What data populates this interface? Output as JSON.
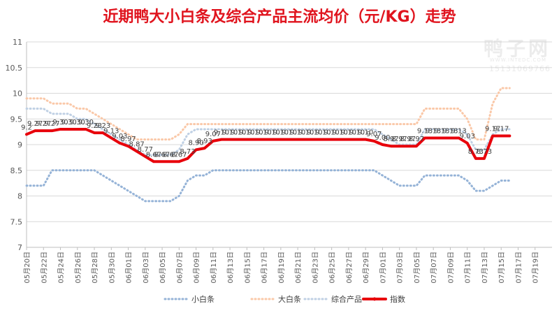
{
  "title": "近期鸭大小白条及综合产品主流均价（元/KG）走势",
  "watermark": {
    "brand": "鸭子网",
    "url": "WWW.INTEDC.COM",
    "phone": "15131069766"
  },
  "chart_data": {
    "type": "line",
    "title": "近期鸭大小白条及综合产品主流均价（元/KG）走势",
    "xlabel": "",
    "ylabel": "",
    "ylim": [
      7,
      11
    ],
    "yticks": [
      7,
      7.5,
      8,
      8.5,
      9,
      9.5,
      10,
      10.5,
      11
    ],
    "grid": true,
    "legend": "bottom",
    "x_labels": [
      "05月20日",
      "05月22日",
      "05月24日",
      "05月26日",
      "05月28日",
      "05月30日",
      "06月01日",
      "06月03日",
      "06月05日",
      "06月07日",
      "06月09日",
      "06月11日",
      "06月13日",
      "06月15日",
      "06月17日",
      "06月19日",
      "06月21日",
      "06月23日",
      "06月25日",
      "06月27日",
      "06月29日",
      "07月01日",
      "07月03日",
      "07月05日",
      "07月07日",
      "07月09日",
      "07月11日",
      "07月13日",
      "07月15日",
      "07月17日",
      "07月19日"
    ],
    "series": [
      {
        "name": "小白条",
        "color": "#95b3d7",
        "style": "dotted",
        "values": [
          8.2,
          8.2,
          8.2,
          8.5,
          8.5,
          8.5,
          8.5,
          8.5,
          8.5,
          8.4,
          8.3,
          8.2,
          8.1,
          8.0,
          7.9,
          7.9,
          7.9,
          7.9,
          8.0,
          8.3,
          8.4,
          8.4,
          8.5,
          8.5,
          8.5,
          8.5,
          8.5,
          8.5,
          8.5,
          8.5,
          8.5,
          8.5,
          8.5,
          8.5,
          8.5,
          8.5,
          8.5,
          8.5,
          8.5,
          8.5,
          8.5,
          8.5,
          8.4,
          8.3,
          8.2,
          8.2,
          8.2,
          8.4,
          8.4,
          8.4,
          8.4,
          8.4,
          8.3,
          8.1,
          8.1,
          8.2,
          8.3,
          8.3
        ]
      },
      {
        "name": "大白条",
        "color": "#fac8a8",
        "style": "dotted",
        "values": [
          9.9,
          9.9,
          9.9,
          9.8,
          9.8,
          9.8,
          9.7,
          9.7,
          9.6,
          9.5,
          9.4,
          9.3,
          9.2,
          9.1,
          9.1,
          9.1,
          9.1,
          9.1,
          9.2,
          9.4,
          9.4,
          9.4,
          9.4,
          9.4,
          9.4,
          9.4,
          9.4,
          9.4,
          9.4,
          9.4,
          9.4,
          9.4,
          9.4,
          9.4,
          9.4,
          9.4,
          9.4,
          9.4,
          9.4,
          9.4,
          9.4,
          9.4,
          9.4,
          9.4,
          9.4,
          9.4,
          9.4,
          9.7,
          9.7,
          9.7,
          9.7,
          9.7,
          9.5,
          9.1,
          9.1,
          9.8,
          10.1,
          10.1
        ]
      },
      {
        "name": "综合产品",
        "color": "#bfd0e4",
        "style": "dotted",
        "values": [
          9.7,
          9.7,
          9.7,
          9.6,
          9.6,
          9.6,
          9.5,
          9.5,
          9.4,
          9.3,
          9.2,
          9.1,
          9.0,
          8.9,
          8.8,
          8.8,
          8.8,
          8.8,
          8.9,
          9.2,
          9.3,
          9.3,
          9.3,
          9.3,
          9.3,
          9.3,
          9.3,
          9.3,
          9.3,
          9.3,
          9.3,
          9.3,
          9.3,
          9.3,
          9.3,
          9.3,
          9.3,
          9.3,
          9.3,
          9.3,
          9.3,
          9.3,
          9.2,
          9.1,
          9.0,
          9.0,
          9.0,
          9.3,
          9.3,
          9.3,
          9.3,
          9.3,
          9.2,
          8.9,
          8.9,
          9.2,
          9.3,
          9.3
        ]
      },
      {
        "name": "指数",
        "color": "#e8000b",
        "style": "bold",
        "values": [
          9.2,
          9.27,
          9.27,
          9.27,
          9.3,
          9.3,
          9.3,
          9.3,
          9.23,
          9.23,
          9.13,
          9.03,
          8.97,
          8.87,
          8.77,
          8.67,
          8.67,
          8.67,
          8.67,
          8.73,
          8.9,
          8.93,
          9.07,
          9.1,
          9.1,
          9.1,
          9.1,
          9.1,
          9.1,
          9.1,
          9.1,
          9.1,
          9.1,
          9.1,
          9.1,
          9.1,
          9.1,
          9.1,
          9.1,
          9.1,
          9.1,
          9.07,
          9.0,
          8.97,
          8.97,
          8.97,
          8.97,
          9.13,
          9.13,
          9.13,
          9.13,
          9.13,
          9.03,
          8.73,
          8.73,
          9.17,
          9.17,
          9.17
        ]
      }
    ],
    "data_labels": {
      "series": "指数",
      "items": [
        {
          "i": 0,
          "text": "9.2"
        },
        {
          "i": 1,
          "text": "9.27"
        },
        {
          "i": 2,
          "text": "9.27"
        },
        {
          "i": 3,
          "text": "9.27"
        },
        {
          "i": 4,
          "text": "9.30"
        },
        {
          "i": 5,
          "text": "9.30"
        },
        {
          "i": 6,
          "text": "9.30"
        },
        {
          "i": 7,
          "text": "9.30"
        },
        {
          "i": 8,
          "text": "9.23"
        },
        {
          "i": 9,
          "text": "9.23"
        },
        {
          "i": 10,
          "text": "9.13"
        },
        {
          "i": 11,
          "text": "9.03"
        },
        {
          "i": 12,
          "text": "8.97"
        },
        {
          "i": 13,
          "text": "8.87"
        },
        {
          "i": 14,
          "text": "8.77"
        },
        {
          "i": 15,
          "text": "8.67"
        },
        {
          "i": 16,
          "text": "8.67"
        },
        {
          "i": 17,
          "text": "8.67"
        },
        {
          "i": 18,
          "text": "8.67"
        },
        {
          "i": 19,
          "text": "8.73"
        },
        {
          "i": 20,
          "text": "8.90"
        },
        {
          "i": 21,
          "text": "8.93"
        },
        {
          "i": 22,
          "text": "9.07"
        },
        {
          "i": 23,
          "text": "9.10"
        },
        {
          "i": 24,
          "text": "9.10"
        },
        {
          "i": 25,
          "text": "9.10"
        },
        {
          "i": 26,
          "text": "9.10"
        },
        {
          "i": 27,
          "text": "9.10"
        },
        {
          "i": 28,
          "text": "9.10"
        },
        {
          "i": 29,
          "text": "9.10"
        },
        {
          "i": 30,
          "text": "9.10"
        },
        {
          "i": 31,
          "text": "9.10"
        },
        {
          "i": 32,
          "text": "9.10"
        },
        {
          "i": 33,
          "text": "9.10"
        },
        {
          "i": 34,
          "text": "9.10"
        },
        {
          "i": 35,
          "text": "9.10"
        },
        {
          "i": 36,
          "text": "9.10"
        },
        {
          "i": 37,
          "text": "9.10"
        },
        {
          "i": 38,
          "text": "9.10"
        },
        {
          "i": 39,
          "text": "9.10"
        },
        {
          "i": 40,
          "text": "9.10"
        },
        {
          "i": 41,
          "text": "9.07"
        },
        {
          "i": 42,
          "text": "9.00"
        },
        {
          "i": 43,
          "text": "8.97"
        },
        {
          "i": 44,
          "text": "8.97"
        },
        {
          "i": 45,
          "text": "8.97"
        },
        {
          "i": 46,
          "text": "8.97"
        },
        {
          "i": 47,
          "text": "9.13"
        },
        {
          "i": 48,
          "text": "9.13"
        },
        {
          "i": 49,
          "text": "9.13"
        },
        {
          "i": 50,
          "text": "9.13"
        },
        {
          "i": 51,
          "text": "9.13"
        },
        {
          "i": 52,
          "text": "9.03"
        },
        {
          "i": 53,
          "text": "8.73"
        },
        {
          "i": 54,
          "text": "8.73"
        },
        {
          "i": 55,
          "text": "9.17"
        },
        {
          "i": 56,
          "text": "9.17"
        }
      ]
    }
  }
}
